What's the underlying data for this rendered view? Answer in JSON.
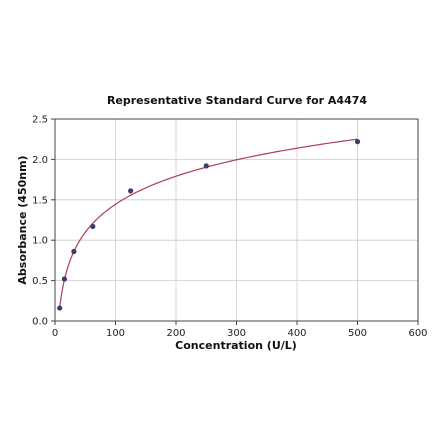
{
  "chart_data": {
    "type": "scatter",
    "title": "Representative Standard Curve for A4474",
    "xlabel": "Concentration (U/L)",
    "ylabel": "Absorbance (450nm)",
    "xlim": [
      0,
      600
    ],
    "ylim": [
      0,
      2.5
    ],
    "xticks": [
      "0",
      "100",
      "200",
      "300",
      "400",
      "500",
      "600"
    ],
    "yticks": [
      "0.0",
      "0.5",
      "1.0",
      "1.5",
      "2.0",
      "2.5"
    ],
    "grid": true,
    "legend": "none",
    "series": [
      {
        "points": [
          {
            "x": 7.8,
            "y": 0.16
          },
          {
            "x": 15.6,
            "y": 0.52
          },
          {
            "x": 31.25,
            "y": 0.86
          },
          {
            "x": 62.5,
            "y": 1.17
          },
          {
            "x": 125,
            "y": 1.61
          },
          {
            "x": 250,
            "y": 1.92
          },
          {
            "x": 500,
            "y": 2.22
          }
        ],
        "marker_color": "#3d3d6b",
        "curve_color": "#b03a5a",
        "fit": "log-curve"
      }
    ]
  }
}
